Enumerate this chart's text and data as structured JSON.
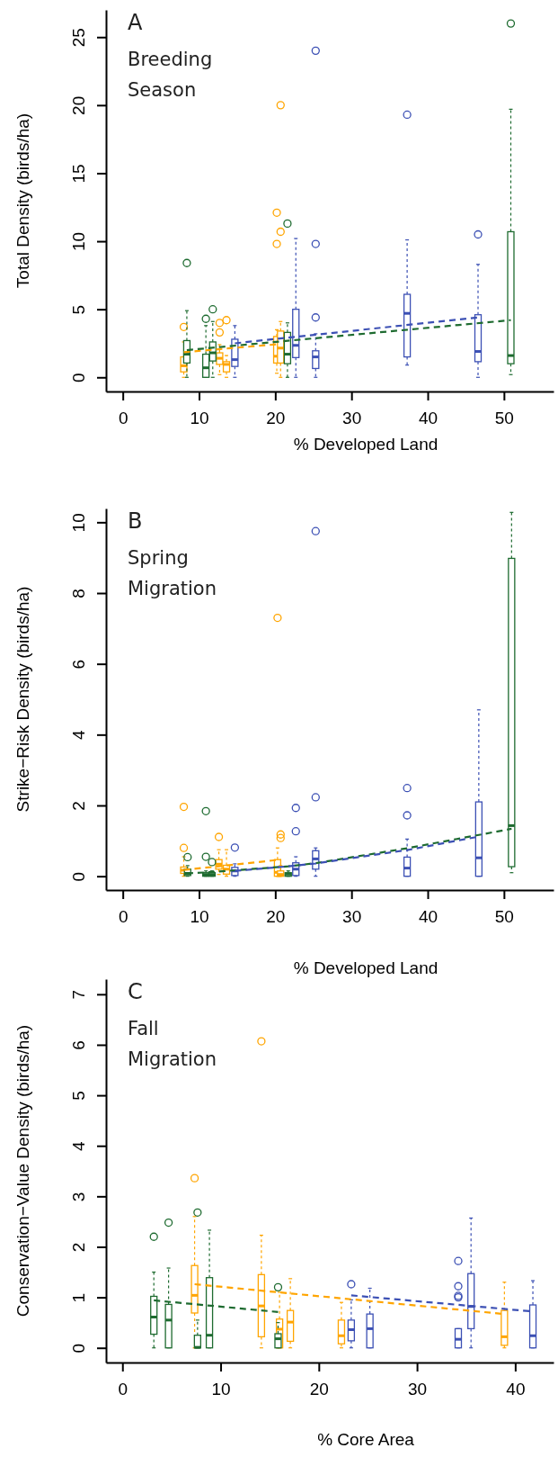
{
  "chart_data": [
    {
      "type": "box",
      "xlabel": "% Developed Land",
      "ylabel": "Total Density (birds/ha)",
      "annotations": [
        "A",
        "Breeding Season"
      ],
      "xlim": [
        -2.2,
        56.5
      ],
      "xticks": [
        0,
        10,
        20,
        30,
        40,
        50
      ],
      "ylim": [
        -1.04,
        27
      ],
      "yticks": [
        0,
        5,
        10,
        15,
        20,
        25
      ],
      "series": [
        {
          "color": "#ffa500",
          "x": [
            8.0,
            12.7,
            13.6,
            20.2,
            20.7
          ],
          "boxes": [
            {
              "low": 0,
              "q1": 0.4,
              "median": 0.85,
              "q3": 1.5,
              "high": 2.6,
              "outliers": [
                3.7
              ]
            },
            {
              "low": 0.2,
              "q1": 0.95,
              "median": 1.4,
              "q3": 1.8,
              "high": 2.4,
              "outliers": [
                3.3,
                4.0
              ]
            },
            {
              "low": 0,
              "q1": 0.4,
              "median": 0.95,
              "q3": 1.15,
              "high": 1.6,
              "outliers": [
                4.2
              ]
            },
            {
              "low": 0.3,
              "q1": 1.05,
              "median": 1.55,
              "q3": 3.0,
              "high": 3.5,
              "outliers": [
                9.8,
                12.1
              ]
            },
            {
              "low": 0,
              "q1": 1.05,
              "median": 2.15,
              "q3": 3.4,
              "high": 4.1,
              "outliers": [
                10.7,
                20.0
              ]
            }
          ]
        },
        {
          "color": "#1e6b30",
          "x": [
            8.4,
            10.9,
            11.8,
            21.6,
            50.9
          ],
          "boxes": [
            {
              "low": 0,
              "q1": 1.05,
              "median": 1.7,
              "q3": 2.7,
              "high": 4.9,
              "outliers": [
                8.4
              ]
            },
            {
              "low": 0,
              "q1": 0,
              "median": 0.7,
              "q3": 1.7,
              "high": 3.8,
              "outliers": [
                4.3
              ]
            },
            {
              "low": 0,
              "q1": 1.2,
              "median": 1.8,
              "q3": 2.6,
              "high": 4.1,
              "outliers": [
                5.0
              ]
            },
            {
              "low": 0,
              "q1": 1.0,
              "median": 1.7,
              "q3": 3.3,
              "high": 4.0,
              "outliers": [
                11.3
              ]
            },
            {
              "low": 0.2,
              "q1": 1.0,
              "median": 1.6,
              "q3": 10.7,
              "high": 19.7,
              "outliers": [
                26.0
              ]
            }
          ]
        },
        {
          "color": "#3c50b4",
          "x": [
            14.7,
            22.7,
            25.3,
            37.3,
            46.6
          ],
          "boxes": [
            {
              "low": 0,
              "q1": 0.8,
              "median": 1.3,
              "q3": 2.8,
              "high": 3.8
            },
            {
              "low": 0,
              "q1": 1.45,
              "median": 2.35,
              "q3": 5.0,
              "high": 10.2
            },
            {
              "low": 0,
              "q1": 0.65,
              "median": 1.5,
              "q3": 1.95,
              "high": 3.2,
              "outliers": [
                4.4,
                9.8,
                24.0
              ]
            },
            {
              "low": 0.9,
              "q1": 1.5,
              "median": 4.7,
              "q3": 6.1,
              "high": 10.1,
              "outliers": [
                19.3
              ]
            },
            {
              "low": 0,
              "q1": 1.15,
              "median": 1.9,
              "q3": 4.6,
              "high": 8.3,
              "outliers": [
                10.5
              ]
            }
          ]
        },
        {
          "type": "line",
          "color": "#ffa500",
          "line_style": "dashed",
          "x": [
            8.0,
            20.7
          ],
          "values": [
            1.85,
            2.45
          ]
        },
        {
          "type": "line",
          "color": "#1e6b30",
          "line_style": "dashed",
          "x": [
            8.4,
            50.9
          ],
          "values": [
            2.0,
            4.2
          ]
        },
        {
          "type": "line",
          "color": "#3c50b4",
          "line_style": "dashed",
          "x": [
            14.7,
            46.6
          ],
          "values": [
            2.5,
            4.4
          ]
        }
      ]
    },
    {
      "type": "box",
      "xlabel": "% Developed Land",
      "ylabel": "Strike−Risk Density (birds/ha)",
      "annotations": [
        "B",
        "Spring Migration"
      ],
      "xlim": [
        -2.2,
        56.5
      ],
      "xticks": [
        0,
        10,
        20,
        30,
        40,
        50
      ],
      "ylim": [
        -0.39,
        10.39
      ],
      "yticks": [
        0,
        2,
        4,
        6,
        8,
        10
      ],
      "series": [
        {
          "color": "#ffa500",
          "x": [
            8.0,
            12.6,
            13.6,
            20.3,
            20.7
          ],
          "boxes": [
            {
              "low": 0,
              "q1": 0.08,
              "median": 0.17,
              "q3": 0.26,
              "high": 0.55,
              "outliers": [
                0.8,
                1.96
              ]
            },
            {
              "low": 0.05,
              "q1": 0.2,
              "median": 0.34,
              "q3": 0.47,
              "high": 0.75,
              "outliers": [
                1.11
              ]
            },
            {
              "low": 0,
              "q1": 0.06,
              "median": 0.2,
              "q3": 0.31,
              "high": 0.75
            },
            {
              "low": 0,
              "q1": 0,
              "median": 0.11,
              "q3": 0.47,
              "high": 0.8,
              "outliers": [
                7.3
              ]
            },
            {
              "low": 0,
              "q1": 0,
              "median": 0.05,
              "q3": 0.15,
              "high": 0.3,
              "outliers": [
                1.08,
                1.18
              ]
            }
          ]
        },
        {
          "color": "#1e6b30",
          "x": [
            8.5,
            10.9,
            11.7,
            21.7,
            51.0
          ],
          "boxes": [
            {
              "low": 0,
              "q1": 0.02,
              "median": 0.08,
              "q3": 0.2,
              "high": 0.3,
              "outliers": [
                0.54
              ]
            },
            {
              "low": 0,
              "q1": 0,
              "median": 0.05,
              "q3": 0.1,
              "high": 0.15,
              "outliers": [
                0.55,
                1.84
              ]
            },
            {
              "low": 0,
              "q1": 0,
              "median": 0.05,
              "q3": 0.1,
              "high": 0.15,
              "outliers": [
                0.4
              ]
            },
            {
              "low": 0,
              "q1": 0,
              "median": 0.06,
              "q3": 0.1,
              "high": 0.15
            },
            {
              "low": 0.1,
              "q1": 0.27,
              "median": 1.43,
              "q3": 8.98,
              "high": 10.28
            }
          ]
        },
        {
          "color": "#3c50b4",
          "x": [
            14.7,
            22.7,
            25.3,
            37.3,
            46.7
          ],
          "boxes": [
            {
              "low": 0,
              "q1": 0.02,
              "median": 0.15,
              "q3": 0.25,
              "high": 0.35,
              "outliers": [
                0.81
              ]
            },
            {
              "low": 0,
              "q1": 0.02,
              "median": 0.2,
              "q3": 0.38,
              "high": 0.55,
              "outliers": [
                1.27,
                1.93
              ]
            },
            {
              "low": 0,
              "q1": 0.2,
              "median": 0.49,
              "q3": 0.72,
              "high": 0.8,
              "outliers": [
                2.23,
                9.75
              ]
            },
            {
              "low": 0,
              "q1": 0,
              "median": 0.23,
              "q3": 0.54,
              "high": 1.05,
              "outliers": [
                1.72,
                2.49
              ]
            },
            {
              "low": 0,
              "q1": 0,
              "median": 0.52,
              "q3": 2.1,
              "high": 4.7
            }
          ]
        },
        {
          "type": "line",
          "color": "#ffa500",
          "line_style": "dashed",
          "x": [
            8.0,
            12.6,
            20.7
          ],
          "values": [
            0.18,
            0.28,
            0.47
          ]
        },
        {
          "type": "line",
          "color": "#1e6b30",
          "line_style": "dashed",
          "x": [
            8.4,
            11.8,
            21.7,
            25.3,
            37.3,
            51.0
          ],
          "values": [
            0.08,
            0.12,
            0.28,
            0.37,
            0.79,
            1.34
          ]
        },
        {
          "type": "line",
          "color": "#3c50b4",
          "line_style": "dashed",
          "x": [
            14.7,
            22.7,
            25.3,
            37.3,
            46.7
          ],
          "values": [
            0.15,
            0.3,
            0.36,
            0.74,
            1.12
          ]
        }
      ]
    },
    {
      "type": "box",
      "xlabel": "% Core Area",
      "ylabel": "Conservation−Value Density (birds/ha)",
      "annotations": [
        "C",
        "Fall Migration"
      ],
      "xlim": [
        -1.67,
        43.9
      ],
      "xticks": [
        0,
        10,
        20,
        30,
        40
      ],
      "ylim": [
        -0.29,
        7.3
      ],
      "yticks": [
        0,
        1,
        2,
        3,
        4,
        5,
        6,
        7
      ],
      "series": [
        {
          "color": "#ffa500",
          "x": [
            7.35,
            14.15,
            16.0,
            17.1,
            22.3,
            38.9
          ],
          "boxes": [
            {
              "low": 0,
              "q1": 0.69,
              "median": 1.04,
              "q3": 1.63,
              "high": 2.6,
              "outliers": [
                3.36
              ]
            },
            {
              "low": 0,
              "q1": 0.22,
              "median": 0.83,
              "q3": 1.45,
              "high": 2.23,
              "outliers": [
                6.07
              ]
            },
            {
              "low": 0,
              "q1": 0,
              "median": 0.37,
              "q3": 0.57,
              "high": 1.1
            },
            {
              "low": 0,
              "q1": 0.13,
              "median": 0.51,
              "q3": 0.74,
              "high": 1.37
            },
            {
              "low": 0,
              "q1": 0.08,
              "median": 0.24,
              "q3": 0.55,
              "high": 0.9
            },
            {
              "low": 0,
              "q1": 0.05,
              "median": 0.22,
              "q3": 0.74,
              "high": 1.3
            }
          ]
        },
        {
          "color": "#1e6b30",
          "x": [
            3.2,
            4.7,
            7.65,
            8.86,
            15.85
          ],
          "boxes": [
            {
              "low": 0,
              "q1": 0.27,
              "median": 0.61,
              "q3": 1.02,
              "high": 1.5,
              "outliers": [
                2.2
              ]
            },
            {
              "low": 0,
              "q1": 0,
              "median": 0.55,
              "q3": 0.86,
              "high": 1.58,
              "outliers": [
                2.48
              ]
            },
            {
              "low": 0,
              "q1": 0,
              "median": 0.01,
              "q3": 0.25,
              "high": 0.55,
              "outliers": [
                2.68
              ]
            },
            {
              "low": 0,
              "q1": 0,
              "median": 0.25,
              "q3": 1.39,
              "high": 2.33
            },
            {
              "low": 0,
              "q1": 0,
              "median": 0.18,
              "q3": 0.28,
              "high": 0.5,
              "outliers": [
                1.2
              ]
            }
          ]
        },
        {
          "color": "#3c50b4",
          "x": [
            23.3,
            25.2,
            34.2,
            35.5,
            41.8
          ],
          "boxes": [
            {
              "low": 0,
              "q1": 0.14,
              "median": 0.36,
              "q3": 0.55,
              "high": 0.95,
              "outliers": [
                1.26
              ]
            },
            {
              "low": 0,
              "q1": 0,
              "median": 0.38,
              "q3": 0.67,
              "high": 1.18
            },
            {
              "low": 0,
              "q1": 0,
              "median": 0.17,
              "q3": 0.38,
              "high": 0.38,
              "outliers": [
                1.0,
                1.03,
                1.22,
                1.72
              ]
            },
            {
              "low": 0,
              "q1": 0.38,
              "median": 0.82,
              "q3": 1.47,
              "high": 2.57
            },
            {
              "low": 0,
              "q1": 0,
              "median": 0.24,
              "q3": 0.85,
              "high": 1.33
            }
          ]
        },
        {
          "type": "line",
          "color": "#ffa500",
          "line_style": "dashed",
          "x": [
            7.35,
            38.9
          ],
          "values": [
            1.26,
            0.67
          ]
        },
        {
          "type": "line",
          "color": "#1e6b30",
          "line_style": "dashed",
          "x": [
            3.2,
            15.85
          ],
          "values": [
            0.94,
            0.71
          ]
        },
        {
          "type": "line",
          "color": "#3c50b4",
          "line_style": "dashed",
          "x": [
            23.3,
            41.8
          ],
          "values": [
            1.04,
            0.72
          ]
        }
      ]
    }
  ]
}
